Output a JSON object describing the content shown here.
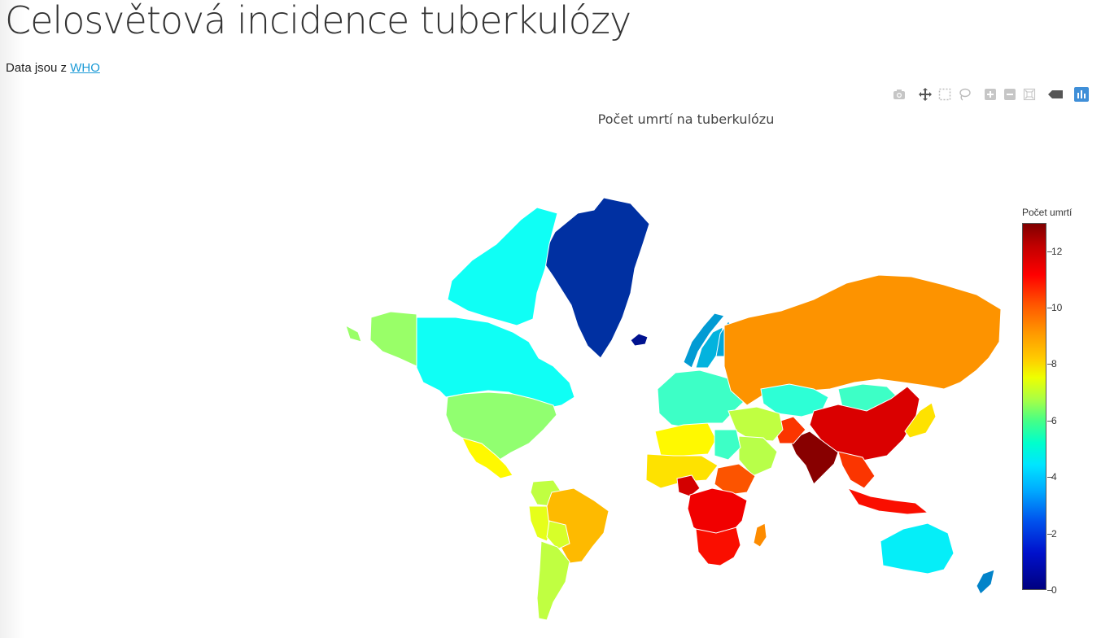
{
  "page": {
    "title": "Celosvětová incidence tuberkulózy",
    "source_prefix": "Data jsou z",
    "source_link": "WHO"
  },
  "modebar": {
    "buttons": [
      {
        "name": "camera-icon"
      },
      {
        "name": "pan-icon"
      },
      {
        "name": "box-select-icon"
      },
      {
        "name": "lasso-select-icon"
      },
      {
        "name": "zoom-in-icon"
      },
      {
        "name": "zoom-out-icon"
      },
      {
        "name": "reset-view-icon"
      },
      {
        "name": "hover-icon"
      },
      {
        "name": "plotly-logo-icon"
      }
    ]
  },
  "chart_data": {
    "type": "choropleth",
    "title": "Počet umrtí na tuberkulózu",
    "colorbar": {
      "title": "Počet umrtí",
      "min": 0,
      "max": 13,
      "ticks": [
        0,
        2,
        4,
        6,
        8,
        10,
        12
      ],
      "colorscale": "Jet"
    },
    "regions": [
      {
        "name": "Greenland",
        "value": 1.3
      },
      {
        "name": "Iceland",
        "value": 0.5
      },
      {
        "name": "Canada",
        "value": 5
      },
      {
        "name": "Canadian Arctic",
        "value": 5
      },
      {
        "name": "Alaska",
        "value": 6.8
      },
      {
        "name": "United States",
        "value": 6.7
      },
      {
        "name": "Mexico",
        "value": 8.2
      },
      {
        "name": "Colombia",
        "value": 7.3
      },
      {
        "name": "Peru",
        "value": 7.8
      },
      {
        "name": "Brazil",
        "value": 9
      },
      {
        "name": "Bolivia",
        "value": 7.6
      },
      {
        "name": "Chile/Argentina",
        "value": 7.3
      },
      {
        "name": "Norway",
        "value": 3.2
      },
      {
        "name": "Sweden",
        "value": 3.6
      },
      {
        "name": "Finland",
        "value": 3.4
      },
      {
        "name": "Western Europe",
        "value": 5.6
      },
      {
        "name": "Russia",
        "value": 9.5
      },
      {
        "name": "Kazakhstan",
        "value": 5.4
      },
      {
        "name": "Mongolia",
        "value": 5.6
      },
      {
        "name": "China",
        "value": 11.8
      },
      {
        "name": "India",
        "value": 12.9
      },
      {
        "name": "Pakistan",
        "value": 10.7
      },
      {
        "name": "Middle East",
        "value": 7.3
      },
      {
        "name": "Saudi Arabia",
        "value": 7.2
      },
      {
        "name": "Algeria/Libya",
        "value": 8.2
      },
      {
        "name": "Sahel",
        "value": 8.5
      },
      {
        "name": "Egypt",
        "value": 5.6
      },
      {
        "name": "Nigeria",
        "value": 11.9
      },
      {
        "name": "Ethiopia",
        "value": 10.3
      },
      {
        "name": "Central Africa",
        "value": 11.5
      },
      {
        "name": "Southern Africa",
        "value": 11.2
      },
      {
        "name": "Madagascar",
        "value": 9.6
      },
      {
        "name": "Japan",
        "value": 8.5
      },
      {
        "name": "Southeast Asia",
        "value": 10.7
      },
      {
        "name": "Indonesia",
        "value": 11.2
      },
      {
        "name": "Australia",
        "value": 4.6
      },
      {
        "name": "New Zealand",
        "value": 2.8
      }
    ]
  }
}
